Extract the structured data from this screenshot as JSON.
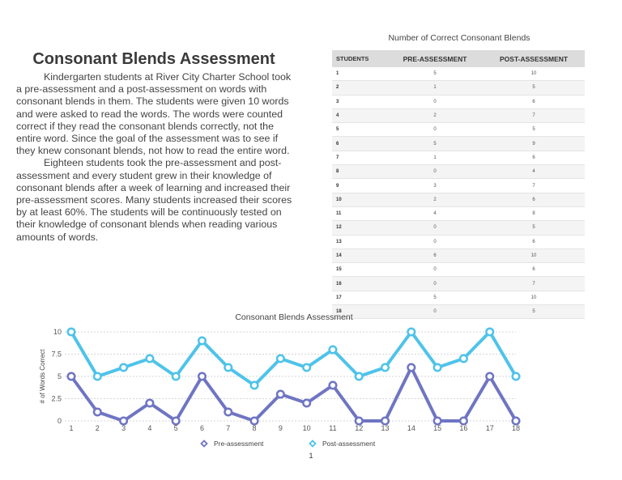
{
  "document": {
    "title": "Consonant Blends Assessment",
    "paragraphs": [
      "Kindergarten students at River City Charter School took a pre-assessment and a post-assessment on words with consonant blends in them. The students were given 10 words and were asked to read the words. The words were counted correct if they read the consonant blends correctly, not the entire word. Since the goal of the assessment was to see if they knew consonant blends, not how to read the entire word.",
      "Eighteen students took the pre-assessment and post-assessment and every student grew in their knowledge of consonant blends after a week of learning and increased their pre-assessment scores. Many students increased their scores by at least 60%. The students will be continuously tested on their knowledge of consonant blends when reading various amounts of words."
    ],
    "page_number": "1"
  },
  "table": {
    "caption": "Number of Correct Consonant Blends",
    "headers": [
      "Students",
      "Pre-Assessment",
      "Post-Assessment"
    ],
    "rows": [
      [
        "1",
        "5",
        "10"
      ],
      [
        "2",
        "1",
        "5"
      ],
      [
        "3",
        "0",
        "6"
      ],
      [
        "4",
        "2",
        "7"
      ],
      [
        "5",
        "0",
        "5"
      ],
      [
        "6",
        "5",
        "9"
      ],
      [
        "7",
        "1",
        "6"
      ],
      [
        "8",
        "0",
        "4"
      ],
      [
        "9",
        "3",
        "7"
      ],
      [
        "10",
        "2",
        "6"
      ],
      [
        "11",
        "4",
        "8"
      ],
      [
        "12",
        "0",
        "5"
      ],
      [
        "13",
        "0",
        "6"
      ],
      [
        "14",
        "6",
        "10"
      ],
      [
        "15",
        "0",
        "6"
      ],
      [
        "16",
        "0",
        "7"
      ],
      [
        "17",
        "5",
        "10"
      ],
      [
        "18",
        "0",
        "5"
      ]
    ]
  },
  "chart_data": {
    "type": "line",
    "title": "Consonant Blends Assessment",
    "xlabel": "",
    "ylabel": "# of Words Correct",
    "x": [
      1,
      2,
      3,
      4,
      5,
      6,
      7,
      8,
      9,
      10,
      11,
      12,
      13,
      14,
      15,
      16,
      17,
      18
    ],
    "yticks": [
      "0",
      "2.5",
      "5",
      "7.5",
      "10"
    ],
    "ylim": [
      0,
      10
    ],
    "grid": true,
    "legend_position": "bottom",
    "series": [
      {
        "name": "Pre-assessment",
        "color": "#6f75c3",
        "values": [
          5,
          1,
          0,
          2,
          0,
          5,
          1,
          0,
          3,
          2,
          4,
          0,
          0,
          6,
          0,
          0,
          5,
          0
        ]
      },
      {
        "name": "Post-assessment",
        "color": "#4ec3ea",
        "values": [
          10,
          5,
          6,
          7,
          5,
          9,
          6,
          4,
          7,
          6,
          8,
          5,
          6,
          10,
          6,
          7,
          10,
          5
        ]
      }
    ]
  }
}
